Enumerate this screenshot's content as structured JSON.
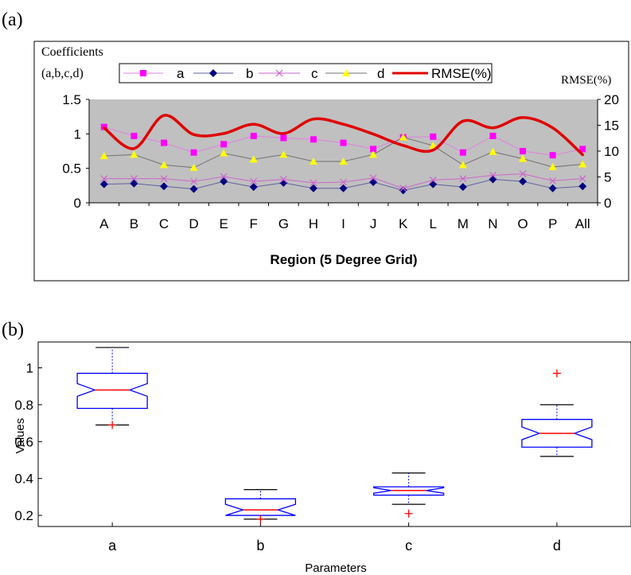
{
  "panel_a": {
    "label": "(a)",
    "y_title_line1": "Coefficients",
    "y_title_line2": "(a,b,c,d)",
    "right_axis_title": "RMSE(%)",
    "x_title": "Region (5 Degree Grid)"
  },
  "panel_b": {
    "label": "(b)",
    "y_title": "Values",
    "x_title": "Parameters"
  },
  "colors": {
    "plot_bg_a": "#c0c0c0",
    "a": "#ff00ff",
    "a_line": "#e080e0",
    "b": "#000080",
    "b_line": "#6060a0",
    "c": "#cc66cc",
    "d": "#ffff00",
    "d_line": "#707070",
    "rmse": "#e00000",
    "box": "#0000ff",
    "median": "#ff0000",
    "outlier": "#ff0000"
  },
  "chart_data": [
    {
      "type": "line",
      "categories": [
        "A",
        "B",
        "C",
        "D",
        "E",
        "F",
        "G",
        "H",
        "I",
        "J",
        "K",
        "L",
        "M",
        "N",
        "O",
        "P",
        "All"
      ],
      "xlabel": "Region (5 Degree Grid)",
      "ylabel": "Coefficients (a,b,c,d)",
      "ylim": [
        0,
        1.5
      ],
      "yticks": [
        "0",
        "0.5",
        "1",
        "1.5"
      ],
      "y2label": "RMSE(%)",
      "y2lim": [
        0,
        20
      ],
      "y2ticks": [
        "0",
        "5",
        "10",
        "15",
        "20"
      ],
      "grid": false,
      "legend_position": "top",
      "series": [
        {
          "name": "a",
          "axis": "left",
          "marker": "square",
          "values": [
            1.1,
            0.97,
            0.87,
            0.73,
            0.85,
            0.97,
            0.94,
            0.92,
            0.87,
            0.78,
            0.95,
            0.96,
            0.73,
            0.97,
            0.75,
            0.69,
            0.78
          ]
        },
        {
          "name": "b",
          "axis": "left",
          "marker": "diamond",
          "values": [
            0.27,
            0.28,
            0.24,
            0.2,
            0.31,
            0.23,
            0.29,
            0.21,
            0.21,
            0.3,
            0.18,
            0.27,
            0.23,
            0.34,
            0.31,
            0.21,
            0.24
          ]
        },
        {
          "name": "c",
          "axis": "left",
          "marker": "x",
          "values": [
            0.35,
            0.35,
            0.35,
            0.31,
            0.38,
            0.31,
            0.34,
            0.29,
            0.3,
            0.36,
            0.21,
            0.33,
            0.35,
            0.4,
            0.42,
            0.32,
            0.35
          ]
        },
        {
          "name": "d",
          "axis": "left",
          "marker": "triangle",
          "values": [
            0.68,
            0.7,
            0.55,
            0.51,
            0.72,
            0.63,
            0.7,
            0.6,
            0.6,
            0.7,
            0.95,
            0.83,
            0.55,
            0.74,
            0.64,
            0.52,
            0.56
          ]
        },
        {
          "name": "RMSE(%)",
          "axis": "right",
          "marker": "none",
          "values": [
            14.5,
            10.5,
            16.9,
            13.2,
            13.4,
            15.2,
            13.4,
            16.2,
            15.2,
            13.3,
            11.1,
            10.2,
            15.8,
            14.5,
            16.5,
            14.5,
            9.3
          ]
        }
      ]
    },
    {
      "type": "box",
      "categories": [
        "a",
        "b",
        "c",
        "d"
      ],
      "xlabel": "Parameters",
      "ylabel": "Values",
      "yticks": [
        "0.2",
        "0.4",
        "0.6",
        "0.8",
        "1"
      ],
      "ylim": [
        0.14,
        1.14
      ],
      "boxes": [
        {
          "name": "a",
          "whisker_low": 0.69,
          "q1": 0.78,
          "median": 0.88,
          "q3": 0.97,
          "whisker_high": 1.11,
          "outliers": [
            0.69
          ]
        },
        {
          "name": "b",
          "whisker_low": 0.18,
          "q1": 0.2,
          "median": 0.23,
          "q3": 0.29,
          "whisker_high": 0.34,
          "outliers": [
            0.18
          ]
        },
        {
          "name": "c",
          "whisker_low": 0.26,
          "q1": 0.31,
          "median": 0.335,
          "q3": 0.355,
          "whisker_high": 0.43,
          "outliers": [
            0.21
          ]
        },
        {
          "name": "d",
          "whisker_low": 0.52,
          "q1": 0.57,
          "median": 0.645,
          "q3": 0.72,
          "whisker_high": 0.8,
          "outliers": [
            0.97
          ]
        }
      ]
    }
  ]
}
